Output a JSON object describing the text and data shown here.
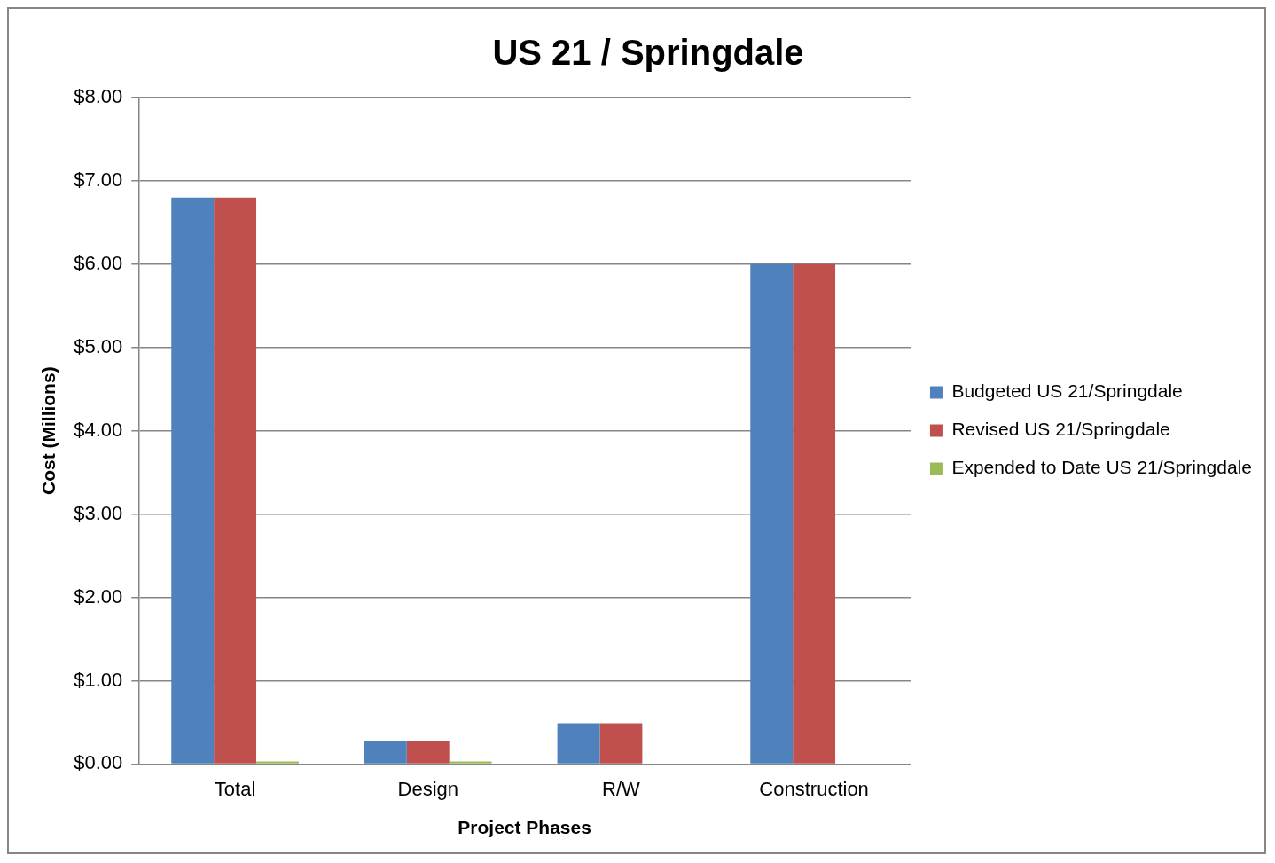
{
  "chart_data": {
    "type": "bar",
    "title": "US 21 / Springdale",
    "xlabel": "Project Phases",
    "ylabel": "Cost (Millions)",
    "categories": [
      "Total",
      "Design",
      "R/W",
      "Construction"
    ],
    "series": [
      {
        "name": "Budgeted US 21/Springdale",
        "color": "#4f81bd",
        "values": [
          6.8,
          0.27,
          0.49,
          6.0
        ]
      },
      {
        "name": "Revised US 21/Springdale",
        "color": "#c0504d",
        "values": [
          6.8,
          0.27,
          0.49,
          6.0
        ]
      },
      {
        "name": "Expended to Date US 21/Springdale",
        "color": "#9bbb59",
        "values": [
          0.03,
          0.03,
          0,
          0
        ]
      }
    ],
    "ylim": [
      0,
      8
    ],
    "yticks": [
      {
        "value": 0,
        "label": "$0.00"
      },
      {
        "value": 1,
        "label": "$1.00"
      },
      {
        "value": 2,
        "label": "$2.00"
      },
      {
        "value": 3,
        "label": "$3.00"
      },
      {
        "value": 4,
        "label": "$4.00"
      },
      {
        "value": 5,
        "label": "$5.00"
      },
      {
        "value": 6,
        "label": "$6.00"
      },
      {
        "value": 7,
        "label": "$7.00"
      },
      {
        "value": 8,
        "label": "$8.00"
      }
    ],
    "grid": "y",
    "legend": "right"
  }
}
